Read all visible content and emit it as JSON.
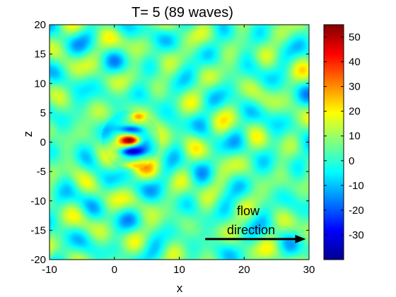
{
  "chart_data": {
    "type": "heatmap",
    "title": "T= 5   (89 waves)",
    "xlabel": "x",
    "ylabel": "z",
    "xlim": [
      -10,
      30
    ],
    "ylim": [
      -20,
      20
    ],
    "x_ticks": [
      "-10",
      "0",
      "10",
      "20",
      "30"
    ],
    "y_ticks": [
      "20",
      "15",
      "10",
      "5",
      "0",
      "-5",
      "-10",
      "-15",
      "-20"
    ],
    "colorbar": {
      "range": [
        -40,
        55
      ],
      "ticks": [
        "50",
        "40",
        "30",
        "20",
        "10",
        "0",
        "-10",
        "-20",
        "-30"
      ],
      "colormap": "jet"
    },
    "annotation": {
      "line1": "flow",
      "line2": "direction",
      "arrow_from": [
        14,
        -16.5
      ],
      "arrow_to": [
        29.5,
        -16.5
      ]
    },
    "features": {
      "source_center": [
        2.5,
        0.3
      ],
      "peak_value": 55,
      "trough_value": -35,
      "background_value": 3
    }
  }
}
